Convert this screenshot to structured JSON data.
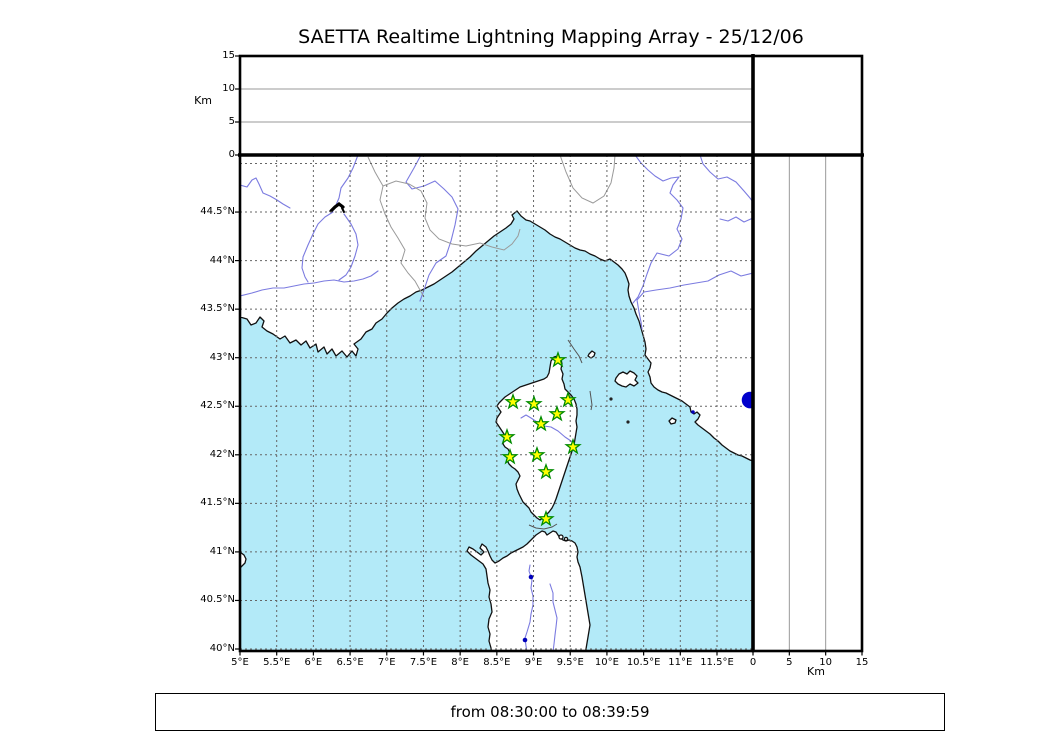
{
  "title": "SAETTA Realtime Lightning Mapping Array - 25/12/06",
  "footer": "from 08:30:00 to 08:39:59",
  "colors": {
    "sea": "#b3eaf8",
    "land": "#ffffff",
    "coast": "#111111",
    "river": "#7b7be0",
    "country_border": "#9a9a9a",
    "grid_dashed": "#666666",
    "grid_solid": "#999999",
    "frame": "#000000",
    "station_fill": "#ffff00",
    "station_stroke": "#008b00",
    "detection": "#0000cc",
    "lake": "#0000bb"
  },
  "axes": {
    "longitude": {
      "ticks": [
        {
          "v": 5,
          "label": "5°E"
        },
        {
          "v": 5.5,
          "label": "5.5°E"
        },
        {
          "v": 6,
          "label": "6°E"
        },
        {
          "v": 6.5,
          "label": "6.5°E"
        },
        {
          "v": 7,
          "label": "7°E"
        },
        {
          "v": 7.5,
          "label": "7.5°E"
        },
        {
          "v": 8,
          "label": "8°E"
        },
        {
          "v": 8.5,
          "label": "8.5°E"
        },
        {
          "v": 9,
          "label": "9°E"
        },
        {
          "v": 9.5,
          "label": "9.5°E"
        },
        {
          "v": 10,
          "label": "10°E"
        },
        {
          "v": 10.5,
          "label": "10.5°E"
        },
        {
          "v": 11,
          "label": "11°E"
        },
        {
          "v": 11.5,
          "label": "11.5°E"
        }
      ],
      "grid": [
        5.5,
        6,
        6.5,
        7,
        7.5,
        8,
        8.5,
        9,
        9.5,
        10,
        10.5,
        11,
        11.5
      ]
    },
    "latitude": {
      "ticks": [
        {
          "v": 44.5,
          "label": "44.5°N"
        },
        {
          "v": 44,
          "label": "44°N"
        },
        {
          "v": 43.5,
          "label": "43.5°N"
        },
        {
          "v": 43,
          "label": "43°N"
        },
        {
          "v": 42.5,
          "label": "42.5°N"
        },
        {
          "v": 42,
          "label": "42°N"
        },
        {
          "v": 41.5,
          "label": "41.5°N"
        },
        {
          "v": 41,
          "label": "41°N"
        },
        {
          "v": 40.5,
          "label": "40.5°N"
        },
        {
          "v": 40,
          "label": "40°N"
        }
      ],
      "grid": [
        40,
        40.5,
        41,
        41.5,
        42,
        42.5,
        43,
        43.5,
        44,
        44.5,
        45
      ]
    },
    "altitude": {
      "label": "Km",
      "ticks": [
        {
          "v": 0,
          "label": "0"
        },
        {
          "v": 5,
          "label": "5"
        },
        {
          "v": 10,
          "label": "10"
        },
        {
          "v": 15,
          "label": "15"
        }
      ],
      "grid": [
        5,
        10
      ],
      "range_km": [
        0,
        15
      ]
    }
  },
  "chart_data": {
    "type": "scatter",
    "panels": [
      "altitude-vs-longitude",
      "geographic-map",
      "altitude-vs-latitude"
    ],
    "map_extent": {
      "lon": [
        5.0,
        11.99
      ],
      "lat": [
        40.0,
        45.09
      ]
    },
    "altitude_range_km": [
      0,
      15
    ],
    "stations": [
      {
        "lon": 9.333,
        "lat": 42.976
      },
      {
        "lon": 8.72,
        "lat": 42.544
      },
      {
        "lon": 9.006,
        "lat": 42.523
      },
      {
        "lon": 9.47,
        "lat": 42.564
      },
      {
        "lon": 9.32,
        "lat": 42.42
      },
      {
        "lon": 9.102,
        "lat": 42.317
      },
      {
        "lon": 8.638,
        "lat": 42.183
      },
      {
        "lon": 9.538,
        "lat": 42.08
      },
      {
        "lon": 8.679,
        "lat": 41.977
      },
      {
        "lon": 9.047,
        "lat": 41.998
      },
      {
        "lon": 9.17,
        "lat": 41.823
      },
      {
        "lon": 9.17,
        "lat": 41.339
      }
    ],
    "detections": [
      {
        "lon": 11.95,
        "lat": 42.564
      }
    ]
  }
}
